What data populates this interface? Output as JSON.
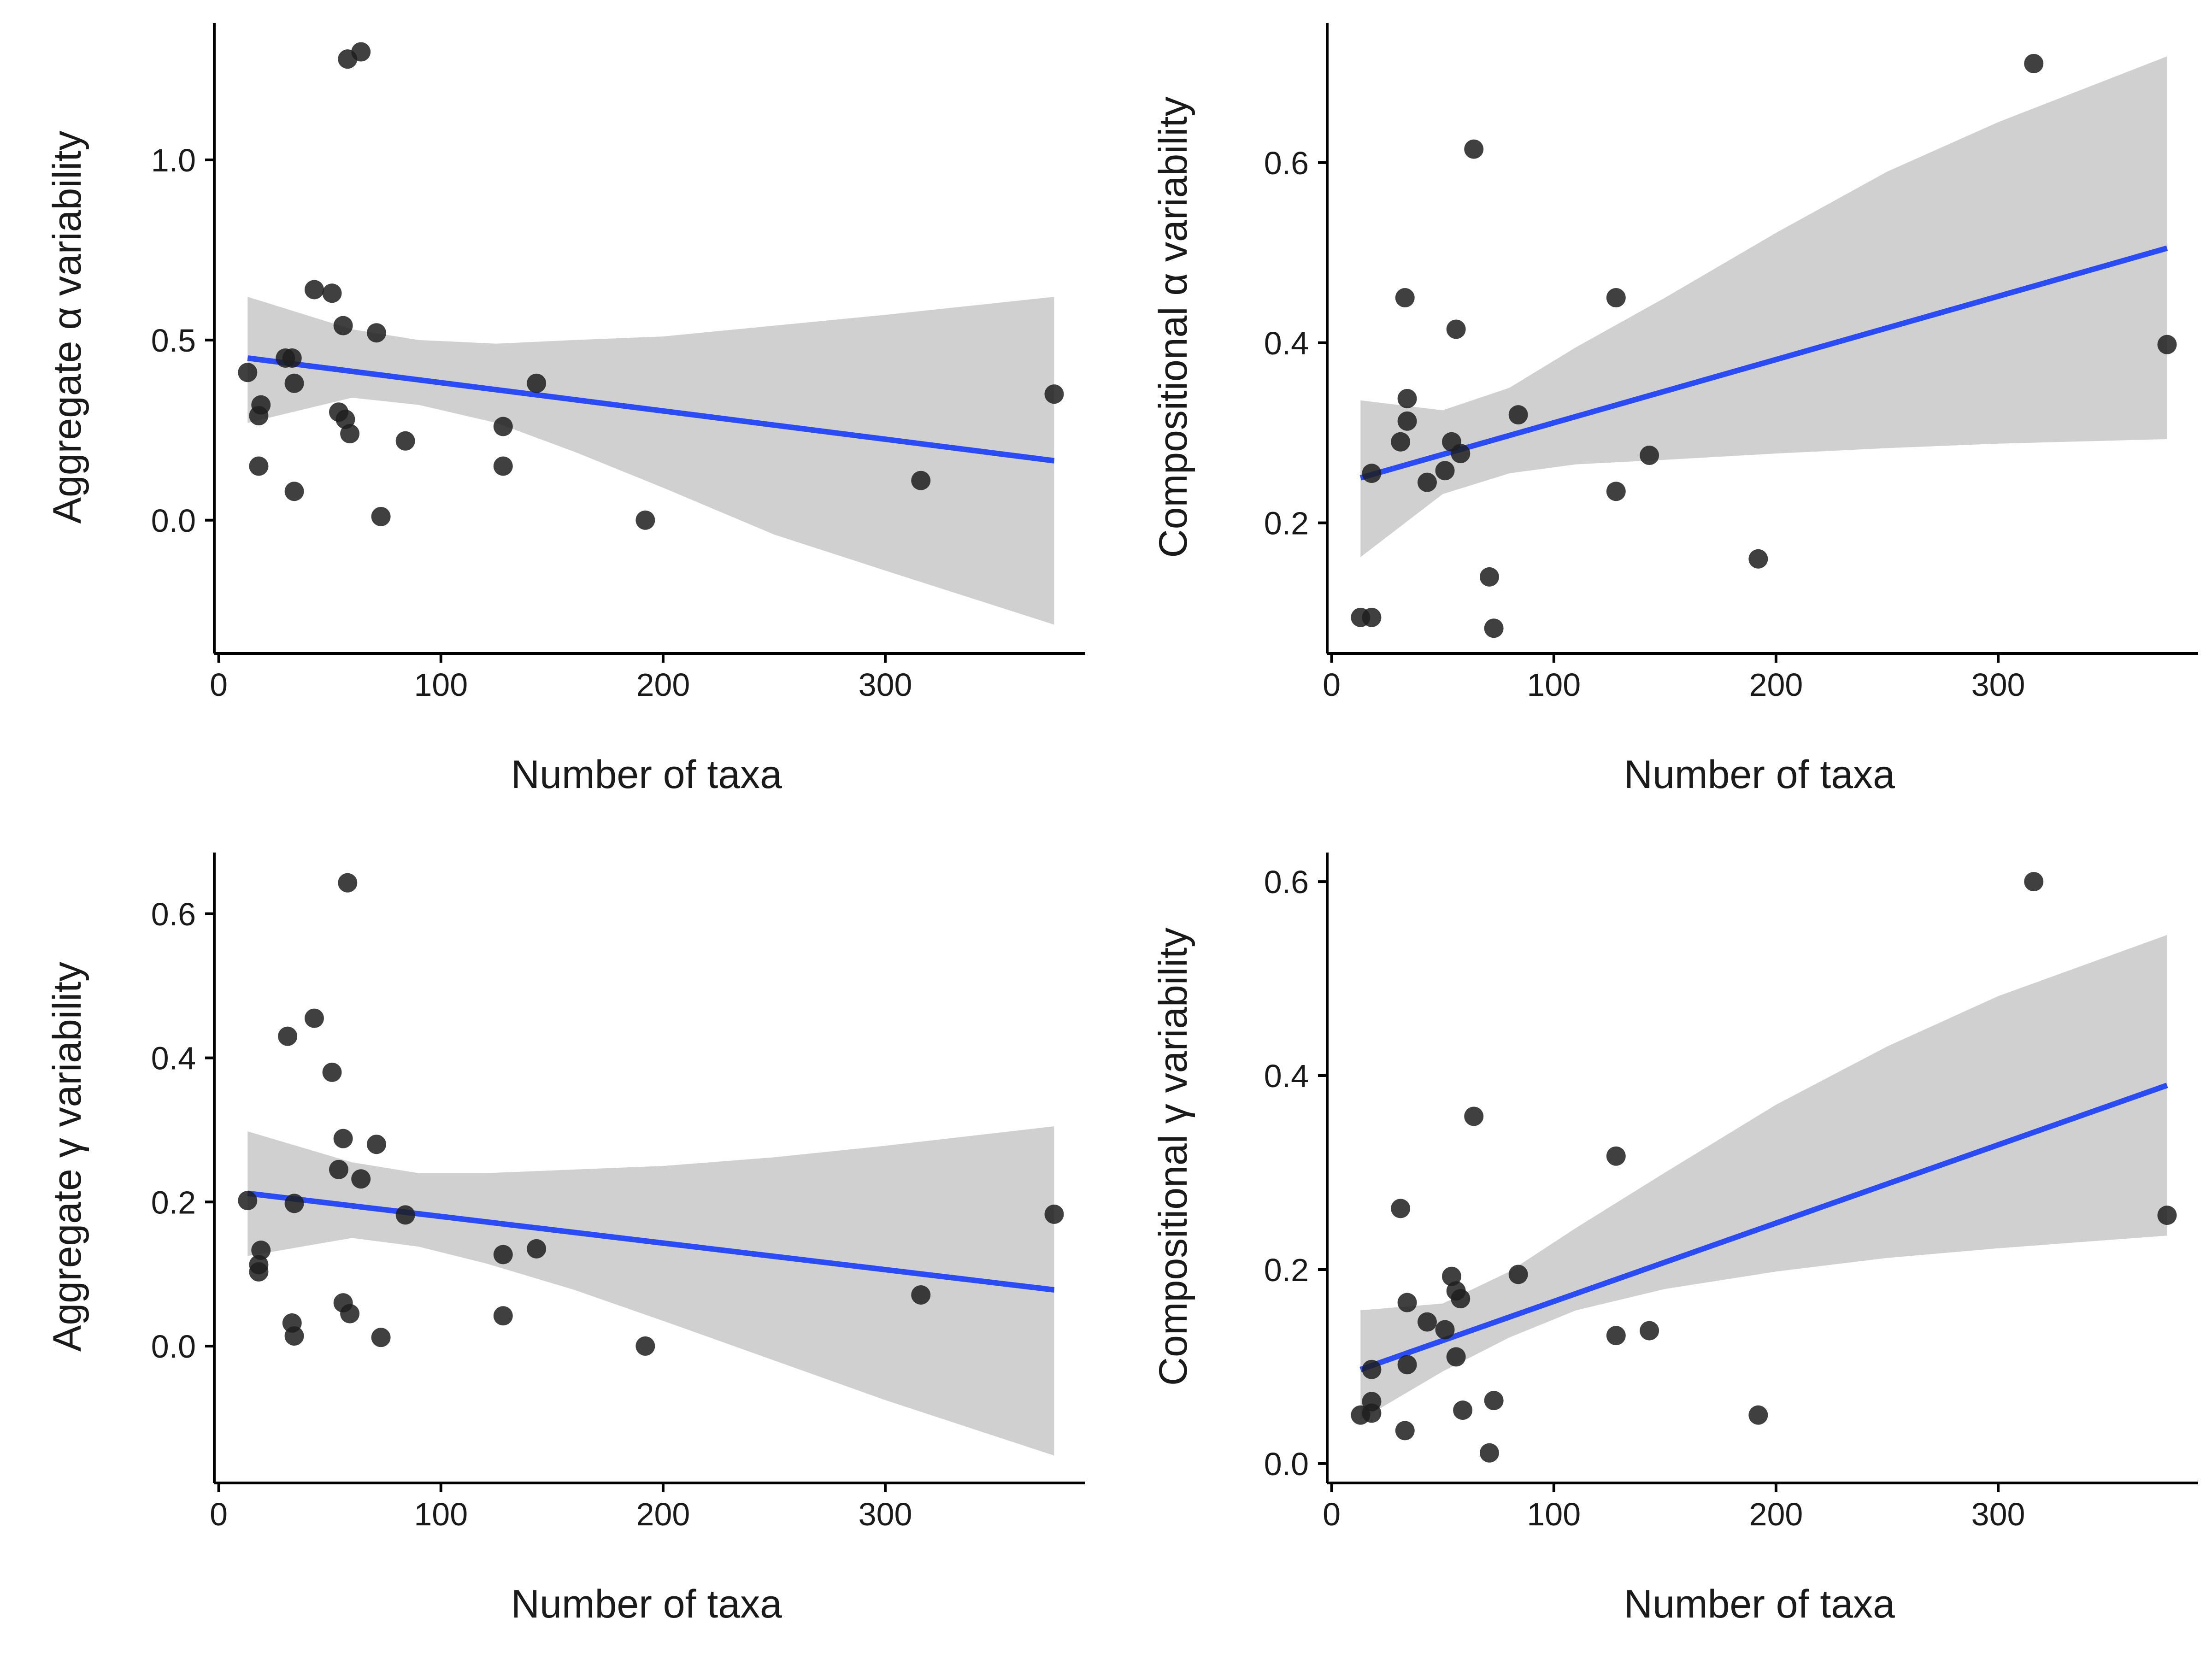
{
  "colors": {
    "band": "#d0d0d0",
    "line": "#2b4cf5",
    "point": "#1f1f1f",
    "axis": "#000000"
  },
  "chart_data": [
    {
      "type": "scatter",
      "xlabel": "Number of taxa",
      "ylabel": "Aggregate α variability",
      "xlim": [
        -2,
        390
      ],
      "ylim": [
        -0.37,
        1.38
      ],
      "xticks": [
        0,
        100,
        200,
        300
      ],
      "xtick_labels": [
        "0",
        "100",
        "200",
        "300"
      ],
      "yticks": [
        0.0,
        0.5,
        1.0
      ],
      "ytick_labels": [
        "0.0",
        "0.5",
        "1.0"
      ],
      "points": [
        [
          58,
          1.28
        ],
        [
          64,
          1.3
        ],
        [
          43,
          0.64
        ],
        [
          51,
          0.63
        ],
        [
          56,
          0.54
        ],
        [
          71,
          0.52
        ],
        [
          30,
          0.45
        ],
        [
          33,
          0.45
        ],
        [
          13,
          0.41
        ],
        [
          34,
          0.38
        ],
        [
          143,
          0.38
        ],
        [
          19,
          0.32
        ],
        [
          18,
          0.29
        ],
        [
          54,
          0.3
        ],
        [
          57,
          0.28
        ],
        [
          59,
          0.24
        ],
        [
          128,
          0.26
        ],
        [
          84,
          0.22
        ],
        [
          18,
          0.15
        ],
        [
          128,
          0.15
        ],
        [
          34,
          0.08
        ],
        [
          73,
          0.01
        ],
        [
          192,
          0.0
        ],
        [
          316,
          0.11
        ],
        [
          376,
          0.35
        ]
      ],
      "fit": {
        "x": [
          13,
          376
        ],
        "y": [
          0.45,
          0.165
        ]
      },
      "ci_band": {
        "x": [
          13,
          60,
          90,
          125,
          160,
          200,
          250,
          300,
          376
        ],
        "lower": [
          0.27,
          0.34,
          0.32,
          0.27,
          0.19,
          0.09,
          -0.04,
          -0.14,
          -0.29
        ],
        "upper": [
          0.62,
          0.53,
          0.5,
          0.49,
          0.5,
          0.51,
          0.54,
          0.57,
          0.62
        ]
      }
    },
    {
      "type": "scatter",
      "xlabel": "Number of taxa",
      "ylabel": "Compositional α variability",
      "xlim": [
        -2,
        390
      ],
      "ylim": [
        0.055,
        0.755
      ],
      "xticks": [
        0,
        100,
        200,
        300
      ],
      "xtick_labels": [
        "0",
        "100",
        "200",
        "300"
      ],
      "yticks": [
        0.2,
        0.4,
        0.6
      ],
      "ytick_labels": [
        "0.2",
        "0.4",
        "0.6"
      ],
      "points": [
        [
          64,
          0.615
        ],
        [
          316,
          0.71
        ],
        [
          33,
          0.45
        ],
        [
          128,
          0.45
        ],
        [
          56,
          0.415
        ],
        [
          376,
          0.398
        ],
        [
          34,
          0.338
        ],
        [
          34,
          0.313
        ],
        [
          84,
          0.32
        ],
        [
          31,
          0.29
        ],
        [
          54,
          0.29
        ],
        [
          58,
          0.277
        ],
        [
          143,
          0.275
        ],
        [
          51,
          0.258
        ],
        [
          18,
          0.255
        ],
        [
          43,
          0.245
        ],
        [
          128,
          0.235
        ],
        [
          192,
          0.16
        ],
        [
          71,
          0.14
        ],
        [
          13,
          0.095
        ],
        [
          18,
          0.095
        ],
        [
          73,
          0.083
        ]
      ],
      "fit": {
        "x": [
          13,
          376
        ],
        "y": [
          0.25,
          0.505
        ]
      },
      "ci_band": {
        "x": [
          13,
          50,
          80,
          110,
          150,
          200,
          250,
          300,
          376
        ],
        "lower": [
          0.162,
          0.232,
          0.255,
          0.265,
          0.27,
          0.277,
          0.283,
          0.288,
          0.293
        ],
        "upper": [
          0.336,
          0.325,
          0.35,
          0.395,
          0.45,
          0.522,
          0.59,
          0.645,
          0.718
        ]
      }
    },
    {
      "type": "scatter",
      "xlabel": "Number of taxa",
      "ylabel": "Aggregate γ variability",
      "xlim": [
        -2,
        390
      ],
      "ylim": [
        -0.19,
        0.685
      ],
      "xticks": [
        0,
        100,
        200,
        300
      ],
      "xtick_labels": [
        "0",
        "100",
        "200",
        "300"
      ],
      "yticks": [
        0.0,
        0.2,
        0.4,
        0.6
      ],
      "ytick_labels": [
        "0.0",
        "0.2",
        "0.4",
        "0.6"
      ],
      "points": [
        [
          58,
          0.643
        ],
        [
          43,
          0.455
        ],
        [
          31,
          0.43
        ],
        [
          51,
          0.38
        ],
        [
          56,
          0.288
        ],
        [
          71,
          0.28
        ],
        [
          54,
          0.245
        ],
        [
          64,
          0.232
        ],
        [
          13,
          0.202
        ],
        [
          34,
          0.198
        ],
        [
          84,
          0.182
        ],
        [
          376,
          0.183
        ],
        [
          143,
          0.135
        ],
        [
          19,
          0.133
        ],
        [
          128,
          0.127
        ],
        [
          18,
          0.113
        ],
        [
          18,
          0.103
        ],
        [
          316,
          0.071
        ],
        [
          56,
          0.06
        ],
        [
          59,
          0.045
        ],
        [
          128,
          0.042
        ],
        [
          33,
          0.032
        ],
        [
          34,
          0.014
        ],
        [
          73,
          0.012
        ],
        [
          192,
          0.0
        ]
      ],
      "fit": {
        "x": [
          13,
          376
        ],
        "y": [
          0.212,
          0.078
        ]
      },
      "ci_band": {
        "x": [
          13,
          60,
          90,
          120,
          160,
          200,
          250,
          300,
          376
        ],
        "lower": [
          0.125,
          0.15,
          0.138,
          0.115,
          0.078,
          0.035,
          -0.02,
          -0.075,
          -0.152
        ],
        "upper": [
          0.298,
          0.255,
          0.24,
          0.24,
          0.245,
          0.25,
          0.262,
          0.278,
          0.305
        ]
      }
    },
    {
      "type": "scatter",
      "xlabel": "Number of taxa",
      "ylabel": "Compositional γ variability",
      "xlim": [
        -2,
        390
      ],
      "ylim": [
        -0.02,
        0.63
      ],
      "xticks": [
        0,
        100,
        200,
        300
      ],
      "xtick_labels": [
        "0",
        "100",
        "200",
        "300"
      ],
      "yticks": [
        0.0,
        0.2,
        0.4,
        0.6
      ],
      "ytick_labels": [
        "0.0",
        "0.2",
        "0.4",
        "0.6"
      ],
      "points": [
        [
          316,
          0.6
        ],
        [
          64,
          0.358
        ],
        [
          128,
          0.317
        ],
        [
          31,
          0.263
        ],
        [
          376,
          0.256
        ],
        [
          84,
          0.195
        ],
        [
          54,
          0.193
        ],
        [
          56,
          0.178
        ],
        [
          58,
          0.17
        ],
        [
          34,
          0.166
        ],
        [
          43,
          0.146
        ],
        [
          51,
          0.138
        ],
        [
          143,
          0.137
        ],
        [
          128,
          0.132
        ],
        [
          56,
          0.11
        ],
        [
          34,
          0.102
        ],
        [
          18,
          0.097
        ],
        [
          73,
          0.065
        ],
        [
          18,
          0.064
        ],
        [
          59,
          0.055
        ],
        [
          18,
          0.052
        ],
        [
          13,
          0.05
        ],
        [
          192,
          0.05
        ],
        [
          33,
          0.034
        ],
        [
          71,
          0.011
        ]
      ],
      "fit": {
        "x": [
          13,
          376
        ],
        "y": [
          0.097,
          0.39
        ]
      },
      "ci_band": {
        "x": [
          13,
          50,
          80,
          110,
          150,
          200,
          250,
          300,
          376
        ],
        "lower": [
          0.045,
          0.095,
          0.13,
          0.158,
          0.18,
          0.198,
          0.212,
          0.222,
          0.235
        ],
        "upper": [
          0.158,
          0.165,
          0.198,
          0.243,
          0.3,
          0.37,
          0.43,
          0.482,
          0.545
        ]
      }
    }
  ]
}
